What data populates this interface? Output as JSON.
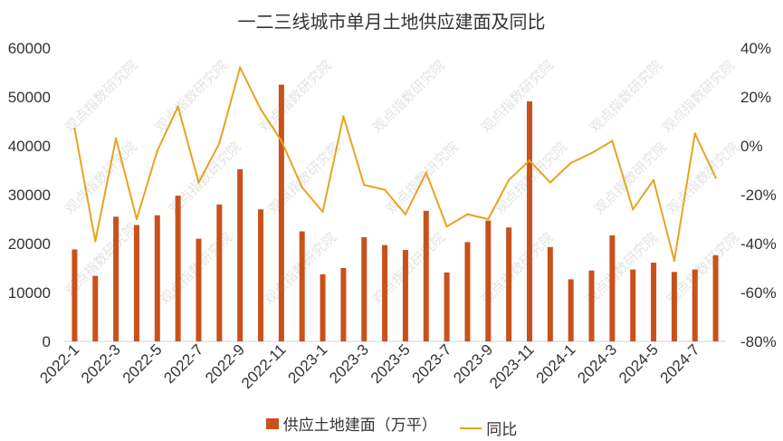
{
  "chart_data": {
    "type": "bar",
    "title": "一二三线城市单月土地供应建面及同比",
    "categories": [
      "2022-1",
      "2022-2",
      "2022-3",
      "2022-4",
      "2022-5",
      "2022-6",
      "2022-7",
      "2022-8",
      "2022-9",
      "2022-10",
      "2022-11",
      "2022-12",
      "2023-1",
      "2023-2",
      "2023-3",
      "2023-4",
      "2023-5",
      "2023-6",
      "2023-7",
      "2023-8",
      "2023-9",
      "2023-10",
      "2023-11",
      "2023-12",
      "2024-1",
      "2024-2",
      "2024-3",
      "2024-4",
      "2024-5",
      "2024-6",
      "2024-7",
      "2024-8"
    ],
    "x_tick_labels": [
      "2022-1",
      "2022-3",
      "2022-5",
      "2022-7",
      "2022-9",
      "2022-11",
      "2023-1",
      "2023-3",
      "2023-5",
      "2023-7",
      "2023-9",
      "2023-11",
      "2024-1",
      "2024-3",
      "2024-5",
      "2024-7"
    ],
    "series": [
      {
        "name": "供应土地建面（万平）",
        "type": "bar",
        "axis": "left",
        "color": "#c9511a",
        "values": [
          18800,
          13400,
          25500,
          23800,
          25800,
          29800,
          21000,
          28000,
          35200,
          27000,
          52500,
          22500,
          13700,
          15000,
          21300,
          19700,
          18700,
          26700,
          14100,
          20300,
          24700,
          23300,
          49100,
          19300,
          12700,
          14500,
          21700,
          14700,
          16100,
          14200,
          14700,
          17600
        ]
      },
      {
        "name": "同比",
        "type": "line",
        "axis": "right",
        "color": "#e7a321",
        "values": [
          7,
          -39,
          3,
          -30,
          -2,
          16,
          -15,
          1,
          32,
          15,
          2,
          -17,
          -27,
          12,
          -16,
          -18,
          -28,
          -11,
          -33,
          -28,
          -30,
          -14,
          -6,
          -15,
          -7,
          -3,
          2,
          -26,
          -14,
          -47,
          5,
          -13
        ]
      }
    ],
    "y_left": {
      "min": 0,
      "max": 60000,
      "ticks": [
        "0",
        "10000",
        "20000",
        "30000",
        "40000",
        "50000",
        "60000"
      ]
    },
    "y_right": {
      "min": -80,
      "max": 40,
      "ticks": [
        "-80%",
        "-60%",
        "-40%",
        "-20%",
        "0%",
        "20%",
        "40%"
      ]
    },
    "grid": false,
    "legend_position": "bottom",
    "watermark": "观点指数研究院"
  }
}
